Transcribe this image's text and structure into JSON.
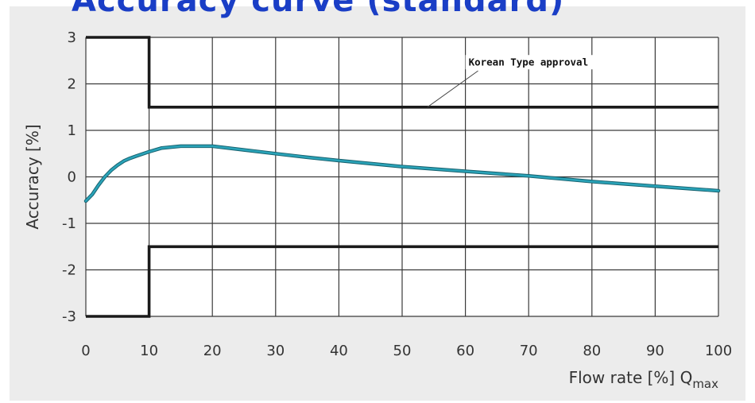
{
  "header_fragment": "Accuracy curve (standard)",
  "chart_data": {
    "type": "line",
    "xlabel": "Flow rate [%] Q",
    "xlabel_sub": "max",
    "ylabel": "Accuracy [%]",
    "xlim": [
      0,
      100
    ],
    "ylim": [
      -3,
      3
    ],
    "x_ticks": [
      0,
      10,
      20,
      30,
      40,
      50,
      60,
      70,
      80,
      90,
      100
    ],
    "y_ticks": [
      3,
      2,
      1,
      0,
      -1,
      -2,
      -3
    ],
    "grid": true,
    "annotation": "Korean Type approval",
    "series": [
      {
        "role": "accuracy-curve",
        "color": "#2aa3b8",
        "x": [
          0,
          1,
          2,
          3,
          4,
          5,
          6,
          7,
          8,
          10,
          12,
          15,
          20,
          25,
          30,
          35,
          40,
          50,
          60,
          70,
          80,
          90,
          100
        ],
        "y": [
          -0.52,
          -0.38,
          -0.18,
          0.0,
          0.14,
          0.25,
          0.34,
          0.4,
          0.45,
          0.54,
          0.62,
          0.66,
          0.66,
          0.58,
          0.5,
          0.42,
          0.35,
          0.22,
          0.12,
          0.02,
          -0.1,
          -0.2,
          -0.3
        ]
      },
      {
        "role": "upper-limit",
        "color": "#1a1a1a",
        "x": [
          0,
          10,
          10,
          100
        ],
        "y": [
          3,
          3,
          1.5,
          1.5
        ]
      },
      {
        "role": "lower-limit",
        "color": "#1a1a1a",
        "x": [
          0,
          10,
          10,
          100
        ],
        "y": [
          -3,
          -3,
          -1.5,
          -1.5
        ]
      }
    ]
  }
}
